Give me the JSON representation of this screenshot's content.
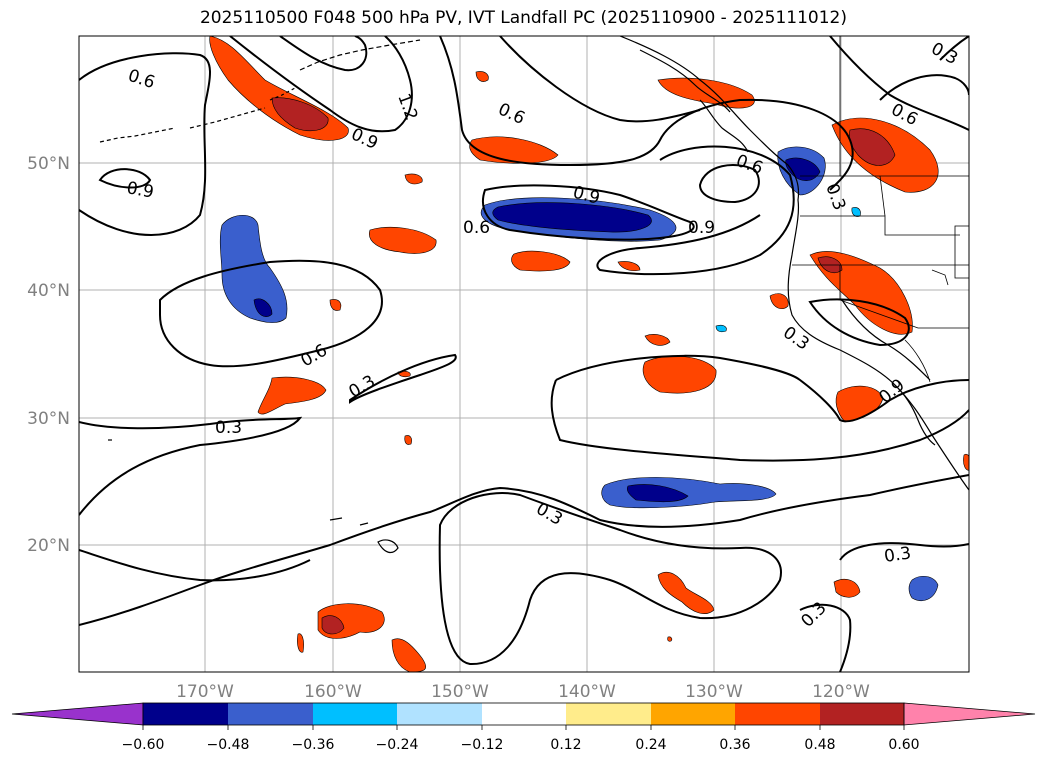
{
  "figure": {
    "title": "2025110500 F048 500 hPa PV, IVT Landfall PC (2025110900 - 2025111012)"
  },
  "map": {
    "lat_labels": [
      "50°N",
      "40°N",
      "30°N",
      "20°N"
    ],
    "lon_labels": [
      "170°W",
      "160°W",
      "150°W",
      "140°W",
      "130°W",
      "120°W"
    ],
    "contour_labels": [
      "0.6",
      "0.9",
      "0.6",
      "0.9",
      "1.2",
      "0.6",
      "0.9",
      "0.6",
      "0.3",
      "0.6",
      "0.9",
      "0.6",
      "0.3",
      "0.3",
      "0.3",
      "0.3",
      "0.3",
      "0.3",
      "0.3",
      "0.9"
    ],
    "colors": {
      "land_outline": "#000000",
      "contour": "#000000",
      "grid": "#b0b0b0"
    }
  },
  "colorbar": {
    "ticks": [
      "−0.60",
      "−0.48",
      "−0.36",
      "−0.24",
      "−0.12",
      "0.12",
      "0.24",
      "0.36",
      "0.48",
      "0.60"
    ],
    "colors": [
      "#9932cc",
      "#00008b",
      "#3a5fcd",
      "#00bfff",
      "#b0e2ff",
      "#ffffff",
      "#ffec8b",
      "#ffa500",
      "#ff4500",
      "#b22222",
      "#ff82ab"
    ]
  }
}
